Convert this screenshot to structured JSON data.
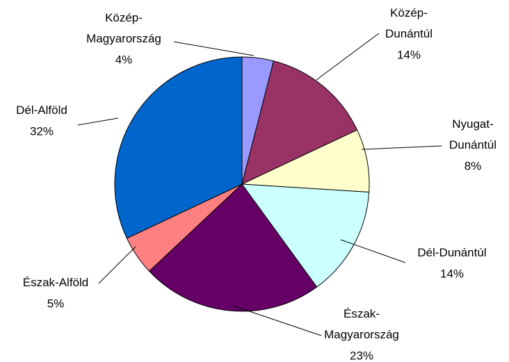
{
  "chart_data": {
    "type": "pie",
    "categories": [
      "Közép-Magyarország",
      "Közép-Dunántúl",
      "Nyugat-Dunántúl",
      "Dél-Dunántúl",
      "Észak-Magyarország",
      "Észak-Alföld",
      "Dél-Alföld"
    ],
    "values": [
      4,
      14,
      8,
      14,
      23,
      5,
      32
    ],
    "value_labels": [
      "4%",
      "14%",
      "8%",
      "14%",
      "23%",
      "5%",
      "32%"
    ],
    "colors": [
      "#9999ff",
      "#993366",
      "#ffffcc",
      "#ccffff",
      "#660066",
      "#ff8080",
      "#0066cc"
    ]
  }
}
